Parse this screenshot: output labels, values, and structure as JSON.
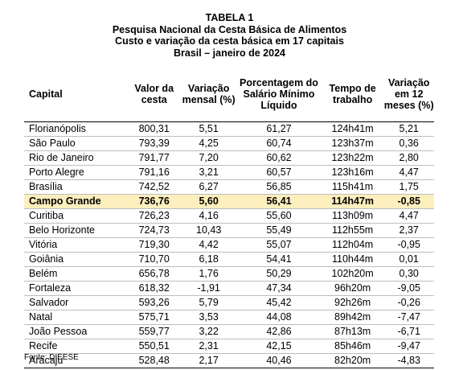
{
  "titles": {
    "line1": "TABELA 1",
    "line2": "Pesquisa Nacional da Cesta Básica de Alimentos",
    "line3": "Custo e variação da cesta básica em 17 capitais",
    "line4": "Brasil – janeiro de 2024"
  },
  "headers": {
    "capital": "Capital",
    "valor": "Valor da cesta",
    "variacao_mensal": "Variação mensal (%)",
    "porcentagem": "Porcentagem do Salário Mínimo Líquido",
    "tempo": "Tempo de trabalho",
    "variacao_12": "Variação em 12 meses (%)"
  },
  "highlight_color": "#fdeebd",
  "rows": [
    {
      "capital": "Florianópolis",
      "valor": "800,31",
      "var_mensal": "5,51",
      "pct_salario": "61,27",
      "tempo": "124h41m",
      "var_12": "5,21"
    },
    {
      "capital": "São Paulo",
      "valor": "793,39",
      "var_mensal": "4,25",
      "pct_salario": "60,74",
      "tempo": "123h37m",
      "var_12": "0,36"
    },
    {
      "capital": "Rio de Janeiro",
      "valor": "791,77",
      "var_mensal": "7,20",
      "pct_salario": "60,62",
      "tempo": "123h22m",
      "var_12": "2,80"
    },
    {
      "capital": "Porto Alegre",
      "valor": "791,16",
      "var_mensal": "3,21",
      "pct_salario": "60,57",
      "tempo": "123h16m",
      "var_12": "4,47"
    },
    {
      "capital": "Brasília",
      "valor": "742,52",
      "var_mensal": "6,27",
      "pct_salario": "56,85",
      "tempo": "115h41m",
      "var_12": "1,75"
    },
    {
      "capital": "Campo Grande",
      "valor": "736,76",
      "var_mensal": "5,60",
      "pct_salario": "56,41",
      "tempo": "114h47m",
      "var_12": "-0,85"
    },
    {
      "capital": "Curitiba",
      "valor": "726,23",
      "var_mensal": "4,16",
      "pct_salario": "55,60",
      "tempo": "113h09m",
      "var_12": "4,47"
    },
    {
      "capital": "Belo Horizonte",
      "valor": "724,73",
      "var_mensal": "10,43",
      "pct_salario": "55,49",
      "tempo": "112h55m",
      "var_12": "2,37"
    },
    {
      "capital": "Vitória",
      "valor": "719,30",
      "var_mensal": "4,42",
      "pct_salario": "55,07",
      "tempo": "112h04m",
      "var_12": "-0,95"
    },
    {
      "capital": "Goiânia",
      "valor": "710,70",
      "var_mensal": "6,18",
      "pct_salario": "54,41",
      "tempo": "110h44m",
      "var_12": "0,01"
    },
    {
      "capital": "Belém",
      "valor": "656,78",
      "var_mensal": "1,76",
      "pct_salario": "50,29",
      "tempo": "102h20m",
      "var_12": "0,30"
    },
    {
      "capital": "Fortaleza",
      "valor": "618,32",
      "var_mensal": "-1,91",
      "pct_salario": "47,34",
      "tempo": "96h20m",
      "var_12": "-9,05"
    },
    {
      "capital": "Salvador",
      "valor": "593,26",
      "var_mensal": "5,79",
      "pct_salario": "45,42",
      "tempo": "92h26m",
      "var_12": "-0,26"
    },
    {
      "capital": "Natal",
      "valor": "575,71",
      "var_mensal": "3,53",
      "pct_salario": "44,08",
      "tempo": "89h42m",
      "var_12": "-7,47"
    },
    {
      "capital": "João Pessoa",
      "valor": "559,77",
      "var_mensal": "3,22",
      "pct_salario": "42,86",
      "tempo": "87h13m",
      "var_12": "-6,71"
    },
    {
      "capital": "Recife",
      "valor": "550,51",
      "var_mensal": "2,31",
      "pct_salario": "42,15",
      "tempo": "85h46m",
      "var_12": "-9,47"
    },
    {
      "capital": "Aracaju",
      "valor": "528,48",
      "var_mensal": "2,17",
      "pct_salario": "40,46",
      "tempo": "82h20m",
      "var_12": "-4,83"
    }
  ],
  "source": "Fonte: DIEESE"
}
